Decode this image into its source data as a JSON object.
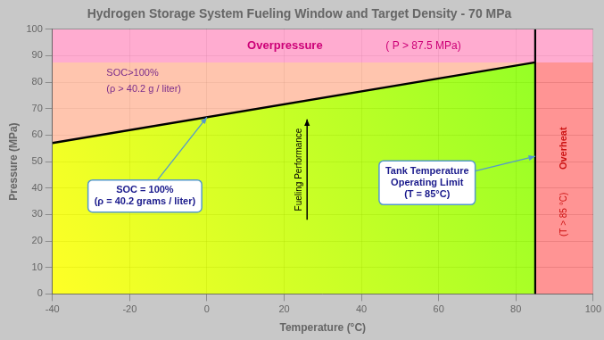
{
  "chart_data": {
    "type": "line",
    "title": "Hydrogen Storage System Fueling Window and Target Density - 70 MPa",
    "xlabel": "Temperature (°C)",
    "ylabel": "Pressure (MPa)",
    "xlim": [
      -40,
      100
    ],
    "ylim": [
      0,
      100
    ],
    "xticks": [
      -40,
      -20,
      0,
      20,
      40,
      60,
      80,
      100
    ],
    "yticks": [
      0,
      10,
      20,
      30,
      40,
      50,
      60,
      70,
      80,
      90,
      100
    ],
    "grid": true,
    "x": [
      -40,
      85
    ],
    "values": [
      57,
      87.5
    ],
    "color": "#000000",
    "overpressure_y": 87.5,
    "overheat_x": 85,
    "overpressure_color": "#FF9EC8",
    "overheat_color": "#FF7070",
    "soc_over_color": "#FFBBA0",
    "fueling_window_colors": [
      "#FFFF00",
      "#73FF00"
    ],
    "callout_color": "#5599CC",
    "background": "#C8C8C8",
    "annotations": [
      {
        "text": "Overpressure",
        "color": "#CC0077"
      },
      {
        "text": "( P > 87.5 MPa)",
        "color": "#CC0077"
      },
      {
        "text": "SOC>100%",
        "color": "#7B2D8B"
      },
      {
        "text": "(ρ > 40.2 g / liter)",
        "color": "#7B2D8B"
      },
      {
        "text": "Fueling Performance",
        "color": "#000000"
      },
      {
        "text": "SOC = 100%\n(ρ = 40.2 grams / liter)",
        "color": "#1A1A8C"
      },
      {
        "text": "Tank Temperature\nOperating Limit\n(T = 85°C)",
        "color": "#1A1A8C"
      },
      {
        "text": "Overheat",
        "color": "#CC1111"
      },
      {
        "text": "(T > 85 °C)",
        "color": "#CC1111"
      }
    ]
  }
}
